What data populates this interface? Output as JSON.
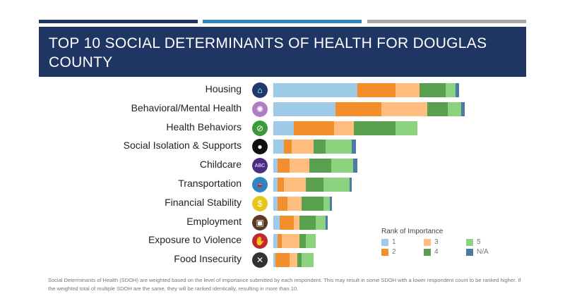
{
  "title": "TOP 10 SOCIAL DETERMINANTS OF HEALTH FOR DOUGLAS COUNTY",
  "top_bar_colors": [
    "#1f3564",
    "#2e86c1",
    "#a6a8ab"
  ],
  "chart_data": {
    "type": "bar",
    "orientation": "horizontal",
    "stacked": true,
    "title": "",
    "categories": [
      "Housing",
      "Behavioral/Mental Health",
      "Health Behaviors",
      "Social Isolation & Supports",
      "Childcare",
      "Transportation",
      "Financial Stability",
      "Employment",
      "Exposure to Violence",
      "Food Insecurity"
    ],
    "category_icons": [
      {
        "icon": "house-icon",
        "color": "#1f3a6e",
        "glyph": "⌂"
      },
      {
        "icon": "brain-icon",
        "color": "#b07cc6",
        "glyph": "✺"
      },
      {
        "icon": "no-smoking-icon",
        "color": "#3a9a3a",
        "glyph": "⊘"
      },
      {
        "icon": "person-icon",
        "color": "#111111",
        "glyph": "●"
      },
      {
        "icon": "abc-blocks-icon",
        "color": "#4b2e83",
        "glyph": "ABC"
      },
      {
        "icon": "car-icon",
        "color": "#2e86c1",
        "glyph": "🚗"
      },
      {
        "icon": "dollar-icon",
        "color": "#e6c619",
        "glyph": "$"
      },
      {
        "icon": "briefcase-icon",
        "color": "#5a3a22",
        "glyph": "▣"
      },
      {
        "icon": "hand-stop-icon",
        "color": "#c0282d",
        "glyph": "✋"
      },
      {
        "icon": "fork-knife-icon",
        "color": "#333333",
        "glyph": "✕"
      }
    ],
    "legend": {
      "title": "Rank of Importance",
      "placement": "bottom-right"
    },
    "series": [
      {
        "name": "1",
        "color": "#a0cbe8",
        "values": [
          119,
          88,
          29,
          15,
          6,
          6,
          6,
          9,
          6,
          3
        ]
      },
      {
        "name": "2",
        "color": "#f28e2b",
        "values": [
          54,
          65,
          57,
          11,
          17,
          9,
          14,
          20,
          6,
          20
        ]
      },
      {
        "name": "3",
        "color": "#ffbe7d",
        "values": [
          34,
          65,
          28,
          31,
          28,
          31,
          20,
          8,
          25,
          11
        ]
      },
      {
        "name": "4",
        "color": "#59a14f",
        "values": [
          37,
          29,
          59,
          17,
          31,
          25,
          31,
          23,
          9,
          6
        ]
      },
      {
        "name": "5",
        "color": "#8cd17d",
        "values": [
          14,
          19,
          31,
          37,
          31,
          37,
          9,
          14,
          14,
          17
        ]
      },
      {
        "name": "N/A",
        "color": "#4e79a7",
        "values": [
          5,
          5,
          0,
          6,
          6,
          3,
          3,
          3,
          0,
          0
        ]
      }
    ],
    "axes_visible": false,
    "grid": false
  },
  "footnote": "Social Determinants of Health (SDOH) are weighted based on the level of importance submitted by each respondent. This may result in some SDOH with a lower respondent count to be ranked higher. If the weighted total of multiple SDOH are the same, they will be ranked identically, resulting in more than 10."
}
